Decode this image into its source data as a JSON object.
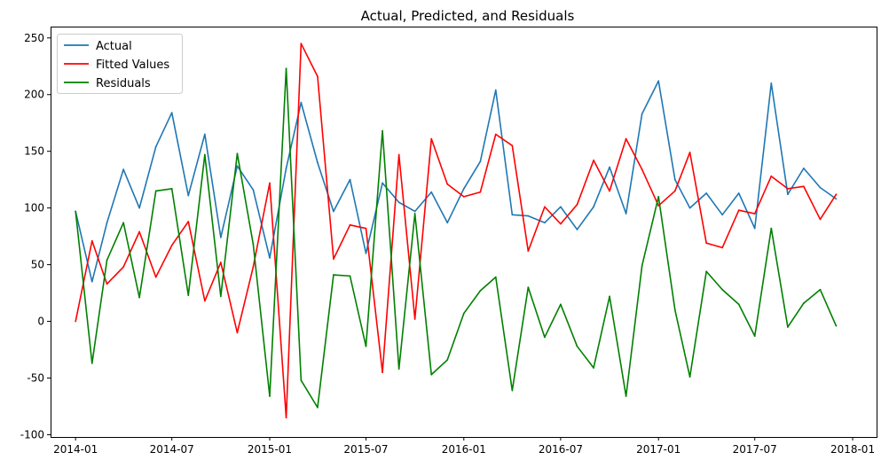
{
  "chart_data": {
    "type": "line",
    "title": "Actual, Predicted, and Residuals",
    "xlabel": "",
    "ylabel": "",
    "x_start": "2014-01",
    "x_ticks": [
      "2014-01",
      "2014-07",
      "2015-01",
      "2015-07",
      "2016-01",
      "2016-07",
      "2017-01",
      "2017-07",
      "2018-01"
    ],
    "y_ticks": [
      -100,
      -50,
      0,
      50,
      100,
      150,
      200,
      250
    ],
    "xlim": [
      "2013-11-15",
      "2018-02-15"
    ],
    "ylim": [
      -102,
      260
    ],
    "grid": false,
    "legend_position": "top-left",
    "x": [
      "2014-01",
      "2014-02",
      "2014-03",
      "2014-04",
      "2014-05",
      "2014-06",
      "2014-07",
      "2014-08",
      "2014-09",
      "2014-10",
      "2014-11",
      "2014-12",
      "2015-01",
      "2015-02",
      "2015-03",
      "2015-04",
      "2015-05",
      "2015-06",
      "2015-07",
      "2015-08",
      "2015-09",
      "2015-10",
      "2015-11",
      "2015-12",
      "2016-01",
      "2016-02",
      "2016-03",
      "2016-04",
      "2016-05",
      "2016-06",
      "2016-07",
      "2016-08",
      "2016-09",
      "2016-10",
      "2016-11",
      "2016-12",
      "2017-01",
      "2017-02",
      "2017-03",
      "2017-04",
      "2017-05",
      "2017-06",
      "2017-07",
      "2017-08",
      "2017-09",
      "2017-10",
      "2017-11",
      "2017-12"
    ],
    "series": [
      {
        "name": "Actual",
        "color": "#1f77b4",
        "values": [
          97,
          35,
          87,
          134,
          100,
          154,
          184,
          111,
          165,
          74,
          137,
          116,
          56,
          135,
          193,
          140,
          97,
          125,
          60,
          122,
          105,
          97,
          114,
          87,
          117,
          141,
          204,
          94,
          93,
          87,
          101,
          81,
          101,
          136,
          95,
          183,
          212,
          125,
          100,
          113,
          94,
          113,
          82,
          210,
          112,
          135,
          118,
          108
        ]
      },
      {
        "name": "Fitted Values",
        "color": "#ff0000",
        "values": [
          0,
          71,
          33,
          48,
          79,
          39,
          67,
          88,
          18,
          52,
          -10,
          48,
          122,
          -85,
          245,
          216,
          55,
          85,
          82,
          -45,
          147,
          2,
          161,
          121,
          110,
          114,
          165,
          155,
          62,
          101,
          86,
          103,
          142,
          115,
          161,
          134,
          102,
          115,
          149,
          69,
          65,
          98,
          95,
          128,
          117,
          119,
          90,
          112
        ]
      },
      {
        "name": "Residuals",
        "color": "#008000",
        "values": [
          97,
          -37,
          54,
          87,
          21,
          115,
          117,
          23,
          147,
          22,
          148,
          68,
          -66,
          223,
          -52,
          -76,
          41,
          40,
          -22,
          168,
          -42,
          95,
          -47,
          -34,
          7,
          27,
          39,
          -61,
          30,
          -14,
          15,
          -22,
          -41,
          22,
          -66,
          49,
          110,
          10,
          -49,
          44,
          28,
          15,
          -13,
          82,
          -5,
          16,
          28,
          -4
        ]
      }
    ]
  }
}
